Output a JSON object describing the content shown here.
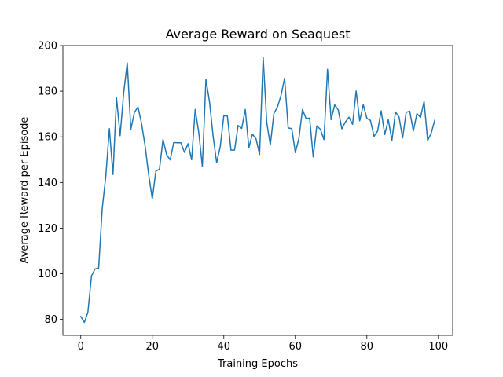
{
  "chart_data": {
    "type": "line",
    "title": "Average Reward on Seaquest",
    "xlabel": "Training Epochs",
    "ylabel": "Average Reward per Episode",
    "xlim": [
      -5,
      104
    ],
    "ylim": [
      73,
      200
    ],
    "xticks": [
      0,
      20,
      40,
      60,
      80,
      100
    ],
    "yticks": [
      80,
      100,
      120,
      140,
      160,
      180,
      200
    ],
    "grid": false,
    "line_color": "#1f77b4",
    "series": [
      {
        "x": [
          0,
          1,
          2,
          3,
          4,
          5,
          6,
          7,
          8,
          9,
          10,
          11,
          12,
          13,
          14,
          15,
          16,
          17,
          18,
          19,
          20,
          21,
          22,
          23,
          24,
          25,
          26,
          27,
          28,
          29,
          30,
          31,
          32,
          33,
          34,
          35,
          36,
          37,
          38,
          39,
          40,
          41,
          42,
          43,
          44,
          45,
          46,
          47,
          48,
          49,
          50,
          51,
          52,
          53,
          54,
          55,
          56,
          57,
          58,
          59,
          60,
          61,
          62,
          63,
          64,
          65,
          66,
          67,
          68,
          69,
          70,
          71,
          72,
          73,
          74,
          75,
          76,
          77,
          78,
          79,
          80,
          81,
          82,
          83,
          84,
          85,
          86,
          87,
          88,
          89,
          90,
          91,
          92,
          93,
          94,
          95,
          96,
          97,
          98,
          99
        ],
        "values": [
          81.3,
          78.7,
          83.2,
          99.1,
          102.1,
          102.5,
          128.6,
          142.8,
          163.6,
          143.5,
          177.1,
          160.5,
          179.3,
          192.4,
          163.3,
          170.7,
          173.1,
          165.8,
          155.9,
          143.3,
          132.8,
          145.0,
          145.8,
          158.9,
          152.2,
          149.9,
          157.5,
          157.4,
          157.4,
          153.2,
          157.0,
          150.0,
          172.0,
          161.9,
          147.0,
          185.1,
          175.4,
          160.4,
          148.7,
          155.7,
          169.3,
          169.1,
          154.2,
          154.2,
          165.0,
          163.7,
          172.0,
          155.3,
          161.2,
          159.2,
          152.3,
          194.9,
          166.4,
          156.4,
          170.2,
          173.1,
          178.2,
          185.7,
          163.9,
          163.6,
          153.1,
          159.4,
          172.0,
          168.0,
          168.2,
          151.2,
          164.8,
          163.3,
          158.8,
          189.6,
          167.5,
          174.0,
          171.8,
          163.5,
          166.5,
          168.6,
          165.5,
          180.1,
          167.0,
          174.1,
          168.1,
          167.2,
          160.2,
          162.5,
          171.4,
          161.0,
          167.5,
          158.4,
          170.9,
          168.7,
          159.5,
          170.8,
          171.2,
          162.6,
          170.2,
          168.5,
          175.5,
          158.4,
          161.6,
          167.4
        ]
      }
    ]
  }
}
